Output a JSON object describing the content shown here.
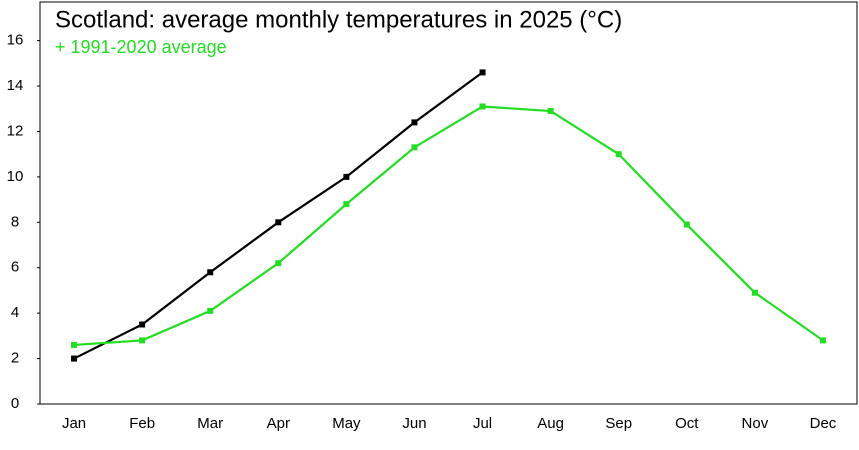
{
  "chart_data": {
    "type": "line",
    "title": "Scotland: average monthly temperatures in 2025 (°C)",
    "subtitle": "+ 1991-2020 average",
    "categories": [
      "Jan",
      "Feb",
      "Mar",
      "Apr",
      "May",
      "Jun",
      "Jul",
      "Aug",
      "Sep",
      "Oct",
      "Nov",
      "Dec"
    ],
    "series": [
      {
        "color": "#000000",
        "values": [
          2.0,
          3.5,
          5.8,
          8.0,
          10.0,
          12.4,
          14.6,
          null,
          null,
          null,
          null,
          null
        ]
      },
      {
        "color": "#22dd22",
        "values": [
          2.6,
          2.8,
          4.1,
          6.2,
          8.8,
          11.3,
          13.1,
          12.9,
          11.0,
          7.9,
          4.9,
          2.8
        ]
      }
    ],
    "ylim": [
      0,
      17.7
    ],
    "yticks": [
      0,
      2,
      4,
      6,
      8,
      10,
      12,
      14,
      16
    ]
  }
}
